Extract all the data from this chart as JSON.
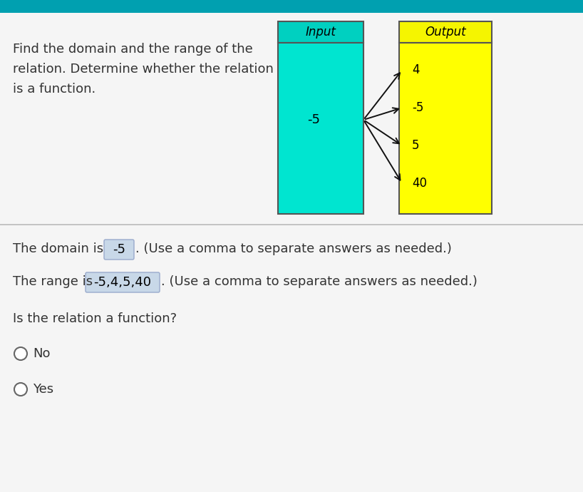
{
  "bg_color": "#f0f0f0",
  "white_bg": "#ffffff",
  "input_box_color": "#00e5d0",
  "output_box_color": "#ffff00",
  "header_input_color": "#00d0c0",
  "header_output_color": "#f5f500",
  "input_label": "Input",
  "output_label": "Output",
  "input_value": "-5",
  "output_values": [
    "4",
    "-5",
    "5",
    "40"
  ],
  "question_line1": "Find the domain and the range of the",
  "question_line2": "relation. Determine whether the relation",
  "question_line3": "is a function.",
  "domain_prefix": "The domain is ",
  "domain_value": "-5",
  "domain_suffix": ". (Use a comma to separate answers as needed.)",
  "range_prefix": "The range is ",
  "range_value": "-5,4,5,40",
  "range_suffix": ". (Use a comma to separate answers as needed.)",
  "function_question": "Is the relation a function?",
  "option_no": "No",
  "option_yes": "Yes",
  "text_color": "#333333",
  "box_border_color": "#555555",
  "arrow_color": "#111111",
  "divider_color": "#bbbbbb",
  "highlight_box_color": "#c8d8e8",
  "highlight_box_edge": "#99aacc"
}
